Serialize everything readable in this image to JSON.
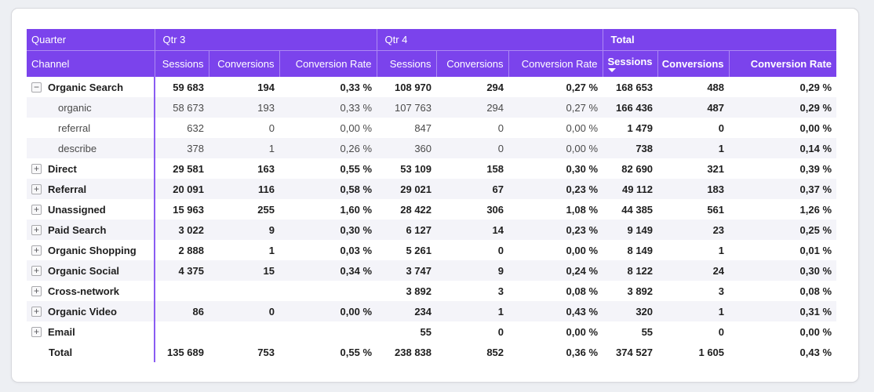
{
  "visual": {
    "type": "matrix-table"
  },
  "colors": {
    "header_purple": "#7b43ec",
    "row_divider_purple": "#8a5cf2",
    "alt_row_bg": "#f4f4f9",
    "page_bg": "#edeff3",
    "card_bg": "#ffffff"
  },
  "icons": {
    "collapse_glyph": "−",
    "expand_glyph": "+",
    "sort_icon": "sort-descending-arrow"
  },
  "sort": {
    "group": "Total",
    "column": "Sessions",
    "direction": "descending"
  },
  "table": {
    "corner": {
      "row1": "Quarter",
      "row2": "Channel"
    },
    "column_groups": [
      {
        "label": "Qtr 3",
        "bold": false,
        "columns": [
          "Sessions",
          "Conversions",
          "Conversion Rate"
        ]
      },
      {
        "label": "Qtr 4",
        "bold": false,
        "columns": [
          "Sessions",
          "Conversions",
          "Conversion Rate"
        ]
      },
      {
        "label": "Total",
        "bold": true,
        "columns": [
          "Sessions",
          "Conversions",
          "Conversion Rate"
        ],
        "sorted_column": "Sessions"
      }
    ],
    "rows": [
      {
        "label": "Organic Search",
        "type": "parent",
        "expand_icon": "minus",
        "values": [
          "59 683",
          "194",
          "0,33 %",
          "108 970",
          "294",
          "0,27 %",
          "168 653",
          "488",
          "0,29 %"
        ]
      },
      {
        "label": "organic",
        "type": "child",
        "expand_icon": "none",
        "values": [
          "58 673",
          "193",
          "0,33 %",
          "107 763",
          "294",
          "0,27 %",
          "166 436",
          "487",
          "0,29 %"
        ]
      },
      {
        "label": "referral",
        "type": "child",
        "expand_icon": "none",
        "values": [
          "632",
          "0",
          "0,00 %",
          "847",
          "0",
          "0,00 %",
          "1 479",
          "0",
          "0,00 %"
        ]
      },
      {
        "label": "describe",
        "type": "child",
        "expand_icon": "none",
        "values": [
          "378",
          "1",
          "0,26 %",
          "360",
          "0",
          "0,00 %",
          "738",
          "1",
          "0,14 %"
        ]
      },
      {
        "label": "Direct",
        "type": "parent",
        "expand_icon": "plus",
        "values": [
          "29 581",
          "163",
          "0,55 %",
          "53 109",
          "158",
          "0,30 %",
          "82 690",
          "321",
          "0,39 %"
        ]
      },
      {
        "label": "Referral",
        "type": "parent",
        "expand_icon": "plus",
        "values": [
          "20 091",
          "116",
          "0,58 %",
          "29 021",
          "67",
          "0,23 %",
          "49 112",
          "183",
          "0,37 %"
        ]
      },
      {
        "label": "Unassigned",
        "type": "parent",
        "expand_icon": "plus",
        "values": [
          "15 963",
          "255",
          "1,60 %",
          "28 422",
          "306",
          "1,08 %",
          "44 385",
          "561",
          "1,26 %"
        ]
      },
      {
        "label": "Paid Search",
        "type": "parent",
        "expand_icon": "plus",
        "values": [
          "3 022",
          "9",
          "0,30 %",
          "6 127",
          "14",
          "0,23 %",
          "9 149",
          "23",
          "0,25 %"
        ]
      },
      {
        "label": "Organic Shopping",
        "type": "parent",
        "expand_icon": "plus",
        "values": [
          "2 888",
          "1",
          "0,03 %",
          "5 261",
          "0",
          "0,00 %",
          "8 149",
          "1",
          "0,01 %"
        ]
      },
      {
        "label": "Organic Social",
        "type": "parent",
        "expand_icon": "plus",
        "values": [
          "4 375",
          "15",
          "0,34 %",
          "3 747",
          "9",
          "0,24 %",
          "8 122",
          "24",
          "0,30 %"
        ]
      },
      {
        "label": "Cross-network",
        "type": "parent",
        "expand_icon": "plus",
        "values": [
          "",
          "",
          "",
          "3 892",
          "3",
          "0,08 %",
          "3 892",
          "3",
          "0,08 %"
        ]
      },
      {
        "label": "Organic Video",
        "type": "parent",
        "expand_icon": "plus",
        "values": [
          "86",
          "0",
          "0,00 %",
          "234",
          "1",
          "0,43 %",
          "320",
          "1",
          "0,31 %"
        ]
      },
      {
        "label": "Email",
        "type": "parent",
        "expand_icon": "plus",
        "values": [
          "",
          "",
          "",
          "55",
          "0",
          "0,00 %",
          "55",
          "0",
          "0,00 %"
        ]
      },
      {
        "label": "Total",
        "type": "grand-total",
        "expand_icon": "none",
        "values": [
          "135 689",
          "753",
          "0,55 %",
          "238 838",
          "852",
          "0,36 %",
          "374 527",
          "1 605",
          "0,43 %"
        ]
      }
    ]
  }
}
